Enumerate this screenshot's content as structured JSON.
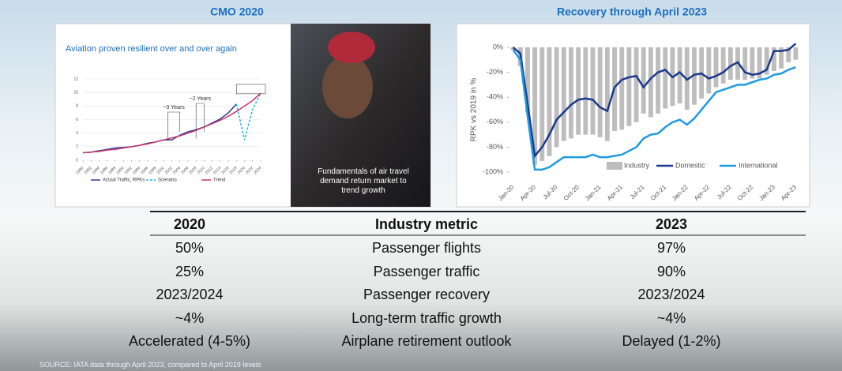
{
  "headings": {
    "left": "CMO 2020",
    "right": "Recovery through April 2023"
  },
  "chart_data": [
    {
      "type": "line",
      "title": "Aviation proven resilient over and over again",
      "annotations": [
        "~3 Years",
        "~2 Years"
      ],
      "caption": "Fundamentals of air travel demand return market to trend growth",
      "x": [
        1980,
        1982,
        1984,
        1986,
        1988,
        1990,
        1992,
        1994,
        1996,
        1998,
        2000,
        2002,
        2004,
        2006,
        2008,
        2010,
        2012,
        2014,
        2016,
        2018,
        2020,
        2022,
        2024
      ],
      "xlim": [
        1980,
        2024
      ],
      "xticks": [
        1980,
        1982,
        1984,
        1986,
        1988,
        1990,
        1992,
        1994,
        1996,
        1998,
        2000,
        2002,
        2004,
        2006,
        2008,
        2010,
        2012,
        2014,
        2016,
        2018,
        2020,
        2022,
        2024
      ],
      "ylim": [
        0,
        12
      ],
      "yticks": [
        0,
        2,
        4,
        6,
        8,
        10,
        12
      ],
      "grid": true,
      "series": [
        {
          "name": "Actual Traffic, RPKs",
          "color": "#2b3f8f",
          "style": "solid",
          "values": [
            1.1,
            1.2,
            1.4,
            1.6,
            1.8,
            1.9,
            2.0,
            2.2,
            2.5,
            2.7,
            3.0,
            3.0,
            3.7,
            4.2,
            4.5,
            4.9,
            5.5,
            6.1,
            7.0,
            8.3,
            null,
            null,
            null
          ]
        },
        {
          "name": "Scenario",
          "color": "#22b6d6",
          "style": "dashed",
          "values": [
            null,
            null,
            null,
            null,
            null,
            null,
            null,
            null,
            null,
            null,
            null,
            null,
            null,
            null,
            null,
            null,
            null,
            null,
            null,
            8.3,
            3.0,
            7.5,
            9.9
          ]
        },
        {
          "name": "Trend",
          "color": "#c8336f",
          "style": "solid",
          "values": [
            1.1,
            1.2,
            1.3,
            1.5,
            1.6,
            1.8,
            2.0,
            2.2,
            2.4,
            2.7,
            3.0,
            3.3,
            3.6,
            4.0,
            4.4,
            4.9,
            5.4,
            5.9,
            6.5,
            7.2,
            8.0,
            8.8,
            9.9
          ]
        }
      ]
    },
    {
      "type": "bar-line",
      "ylabel": "RPK vs 2019 in %",
      "categories": [
        "Jan-20",
        null,
        null,
        "Apr-20",
        null,
        null,
        "Jul-20",
        null,
        null,
        "Oct-20",
        null,
        null,
        "Jan-21",
        null,
        null,
        "Apr-21",
        null,
        null,
        "Jul-21",
        null,
        null,
        "Oct-21",
        null,
        null,
        "Jan-22",
        null,
        null,
        "Apr-22",
        null,
        null,
        "Jul-22",
        null,
        null,
        "Oct-22",
        null,
        null,
        "Jan-23",
        null,
        null,
        "Apr-23"
      ],
      "ylim": [
        -105,
        5
      ],
      "yticks": [
        {
          "value": 0,
          "label": "0%"
        },
        {
          "value": -20,
          "label": "-20%"
        },
        {
          "value": -40,
          "label": "-40%"
        },
        {
          "value": -60,
          "label": "-60%"
        },
        {
          "value": -80,
          "label": "-80%"
        },
        {
          "value": -100,
          "label": "-100%"
        }
      ],
      "series": [
        {
          "name": "Industry",
          "color": "#bdbdbd",
          "kind": "bar",
          "values": [
            -2,
            -15,
            -52,
            -94,
            -91,
            -87,
            -80,
            -75,
            -73,
            -70,
            -70,
            -70,
            -72,
            -75,
            -67,
            -66,
            -63,
            -60,
            -53,
            -56,
            -53,
            -49,
            -47,
            -45,
            -50,
            -46,
            -41,
            -37,
            -32,
            -29,
            -26,
            -26,
            -26,
            -25,
            -25,
            -22,
            -19,
            -17,
            -12,
            -10
          ]
        },
        {
          "name": "Domestic",
          "color": "#1b3a8c",
          "kind": "line",
          "values": [
            0,
            -5,
            -45,
            -87,
            -80,
            -70,
            -58,
            -52,
            -46,
            -42,
            -41,
            -42,
            -48,
            -51,
            -32,
            -26,
            -24,
            -23,
            -32,
            -25,
            -20,
            -18,
            -24,
            -20,
            -26,
            -22,
            -21,
            -25,
            -23,
            -20,
            -15,
            -12,
            -20,
            -22,
            -21,
            -18,
            -3,
            -3,
            -2,
            3
          ]
        },
        {
          "name": "International",
          "color": "#1e9be0",
          "kind": "line",
          "values": [
            -2,
            -10,
            -55,
            -98,
            -98,
            -96,
            -92,
            -88,
            -88,
            -88,
            -88,
            -86,
            -88,
            -88,
            -87,
            -86,
            -83,
            -80,
            -73,
            -70,
            -69,
            -64,
            -60,
            -58,
            -62,
            -57,
            -50,
            -43,
            -36,
            -34,
            -32,
            -30,
            -30,
            -28,
            -26,
            -25,
            -22,
            -21,
            -18,
            -16
          ]
        }
      ]
    }
  ],
  "table": {
    "header": [
      "2020",
      "Industry metric",
      "2023"
    ],
    "rows": [
      [
        "50%",
        "Passenger flights",
        "97%"
      ],
      [
        "25%",
        "Passenger traffic",
        "90%"
      ],
      [
        "2023/2024",
        "Passenger recovery",
        "2023/2024"
      ],
      [
        "~4%",
        "Long-term traffic growth",
        "~4%"
      ],
      [
        "Accelerated (4-5%)",
        "Airplane retirement outlook",
        "Delayed (1-2%)"
      ]
    ]
  },
  "source": "SOURCE: IATA data through April 2023, compared to April 2019 levels"
}
